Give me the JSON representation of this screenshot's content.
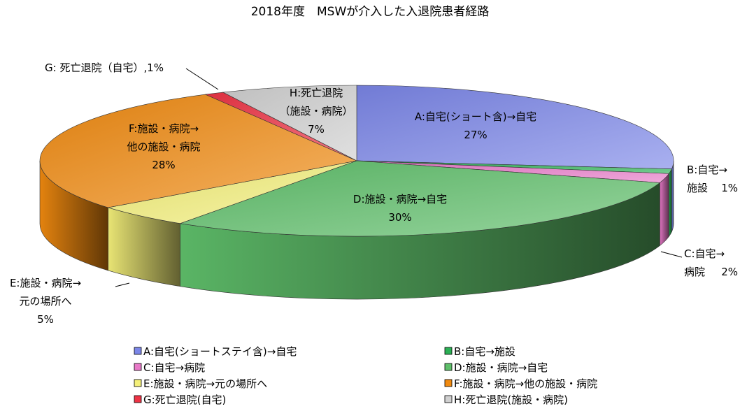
{
  "chart_data": {
    "type": "pie",
    "title": "2018年度　MSWが介入した入退院患者経路",
    "legend_position": "bottom",
    "slices": [
      {
        "legend": "A:自宅(ショートステイ含)→自宅",
        "label_lines": [
          "A:自宅(ショート含)→自宅"
        ],
        "percent_label": "27%",
        "value": 27,
        "color": "#7b86e8"
      },
      {
        "legend": "B:自宅→施設",
        "label_lines": [
          "B:自宅→",
          "施設"
        ],
        "percent_label": "1%",
        "value": 1,
        "color": "#2bb055"
      },
      {
        "legend": "C:自宅→病院",
        "label_lines": [
          "C:自宅→",
          "病院"
        ],
        "percent_label": "2%",
        "value": 2,
        "color": "#e879c8"
      },
      {
        "legend": "D:施設・病院→自宅",
        "label_lines": [
          "D:施設・病院→自宅"
        ],
        "percent_label": "30%",
        "value": 30,
        "color": "#5fbf6a"
      },
      {
        "legend": "E:施設・病院→元の場所へ",
        "label_lines": [
          "E:施設・病院→",
          "元の場所へ"
        ],
        "percent_label": "5%",
        "value": 5,
        "color": "#f4f07a"
      },
      {
        "legend": "F:施設・病院→他の施設・病院",
        "label_lines": [
          "F:施設・病院→",
          "他の施設・病院"
        ],
        "percent_label": "28%",
        "value": 28,
        "color": "#f08a10"
      },
      {
        "legend": "G:死亡退院(自宅)",
        "label_lines": [
          "G: 死亡退院（自宅）,1%"
        ],
        "percent_label": "",
        "value": 1,
        "color": "#ee3345"
      },
      {
        "legend": "H:死亡退院(施設・病院)",
        "label_lines": [
          "H:死亡退院",
          "（施設・病院）"
        ],
        "percent_label": "7%",
        "value": 7,
        "color": "#d0d0d0"
      }
    ]
  }
}
